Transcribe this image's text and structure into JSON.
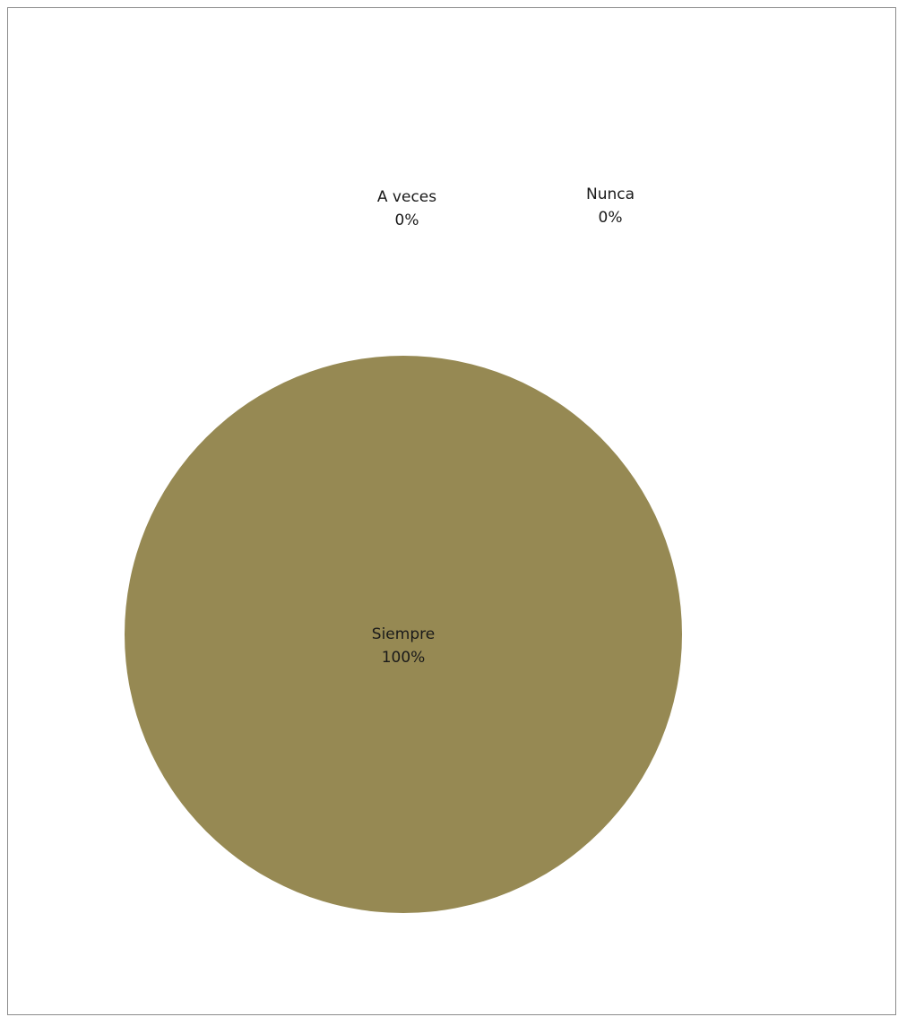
{
  "chart_data": {
    "type": "pie",
    "title": "",
    "categories": [
      "Siempre",
      "A veces",
      "Nunca"
    ],
    "values": [
      100,
      0,
      0
    ],
    "labels": [
      {
        "category": "Siempre",
        "percent": "100%"
      },
      {
        "category": "A veces",
        "percent": "0%"
      },
      {
        "category": "Nunca",
        "percent": "0%"
      }
    ],
    "colors": [
      "#968953",
      "#4f81bd",
      "#c0504d"
    ],
    "legend": "none"
  }
}
